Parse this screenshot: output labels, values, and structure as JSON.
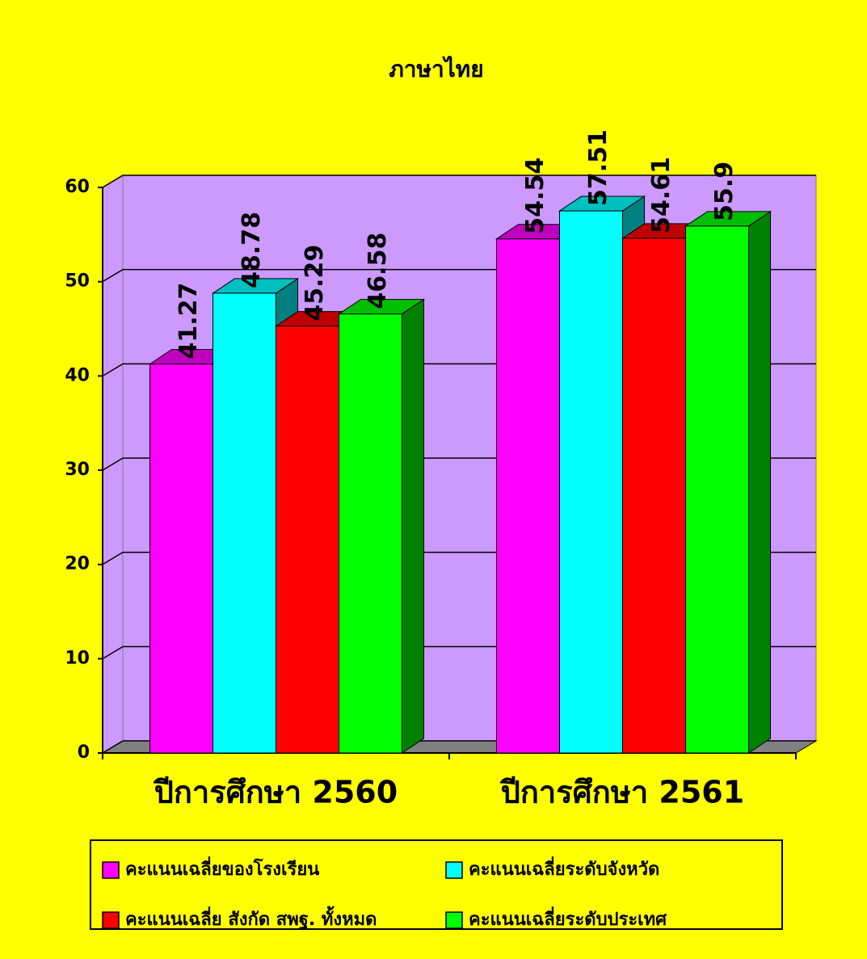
{
  "chart_data": {
    "type": "bar3d",
    "title": "ภาษาไทย",
    "categories": [
      "ปีการศึกษา 2560",
      "ปีการศึกษา 2561"
    ],
    "series": [
      {
        "name": "คะแนนเฉลี่ยของโรงเรียน",
        "color": "#ff00ff",
        "values": [
          41.27,
          54.54
        ]
      },
      {
        "name": "คะแนนเฉลี่ยระดับจังหวัด",
        "color": "#00ffff",
        "values": [
          48.78,
          57.51
        ]
      },
      {
        "name": "คะแนนเฉลี่ย สังกัด สพฐ. ทั้งหมด",
        "color": "#ff0000",
        "values": [
          45.29,
          54.61
        ]
      },
      {
        "name": "คะแนนเฉลี่ยระดับประเทศ",
        "color": "#00ff00",
        "values": [
          46.58,
          55.9
        ]
      }
    ],
    "ylim": [
      0,
      60
    ],
    "yticks": [
      0,
      10,
      20,
      30,
      40,
      50,
      60
    ],
    "grid": true,
    "legend": "bottom"
  }
}
